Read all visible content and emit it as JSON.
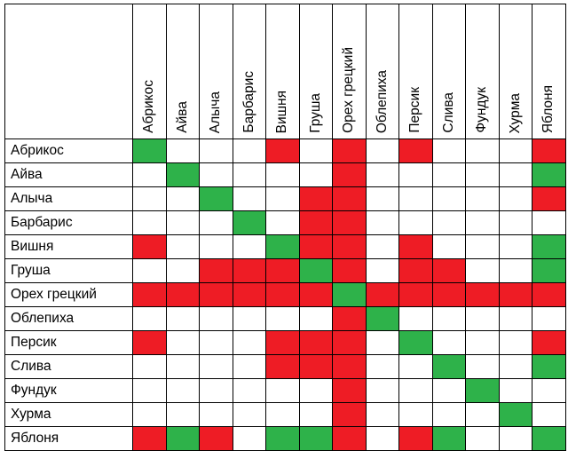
{
  "columns": [
    "Абрикос",
    "Айва",
    "Алыча",
    "Барбарис",
    "Вишня",
    "Груша",
    "Орех грецкий",
    "Облепиха",
    "Персик",
    "Слива",
    "Фундук",
    "Хурма",
    "Яблоня"
  ],
  "rows": [
    "Абрикос",
    "Айва",
    "Алыча",
    "Барбарис",
    "Вишня",
    "Груша",
    "Орех грецкий",
    "Облепиха",
    "Персик",
    "Слива",
    "Фундук",
    "Хурма",
    "Яблоня"
  ],
  "legend": {
    "G": "#2eb24a",
    "R": "#ee1c25",
    "W": "#ffffff"
  },
  "matrix": [
    [
      "G",
      "W",
      "W",
      "W",
      "R",
      "W",
      "R",
      "W",
      "R",
      "W",
      "W",
      "W",
      "R"
    ],
    [
      "W",
      "G",
      "W",
      "W",
      "W",
      "W",
      "R",
      "W",
      "W",
      "W",
      "W",
      "W",
      "G"
    ],
    [
      "W",
      "W",
      "G",
      "W",
      "W",
      "R",
      "R",
      "W",
      "W",
      "W",
      "W",
      "W",
      "R"
    ],
    [
      "W",
      "W",
      "W",
      "G",
      "W",
      "R",
      "R",
      "W",
      "W",
      "W",
      "W",
      "W",
      "W"
    ],
    [
      "R",
      "W",
      "W",
      "W",
      "G",
      "R",
      "R",
      "W",
      "R",
      "W",
      "W",
      "W",
      "G"
    ],
    [
      "W",
      "W",
      "R",
      "R",
      "R",
      "G",
      "R",
      "W",
      "R",
      "R",
      "W",
      "W",
      "G"
    ],
    [
      "R",
      "R",
      "R",
      "R",
      "R",
      "R",
      "G",
      "R",
      "R",
      "R",
      "R",
      "R",
      "R"
    ],
    [
      "W",
      "W",
      "W",
      "W",
      "W",
      "W",
      "R",
      "G",
      "W",
      "W",
      "W",
      "W",
      "W"
    ],
    [
      "R",
      "W",
      "W",
      "W",
      "R",
      "R",
      "R",
      "W",
      "G",
      "W",
      "W",
      "W",
      "R"
    ],
    [
      "W",
      "W",
      "W",
      "W",
      "R",
      "R",
      "R",
      "W",
      "W",
      "G",
      "W",
      "W",
      "G"
    ],
    [
      "W",
      "W",
      "W",
      "W",
      "W",
      "W",
      "R",
      "W",
      "W",
      "W",
      "G",
      "W",
      "W"
    ],
    [
      "W",
      "W",
      "W",
      "W",
      "W",
      "W",
      "R",
      "W",
      "W",
      "W",
      "W",
      "G",
      "W"
    ],
    [
      "R",
      "G",
      "R",
      "W",
      "G",
      "G",
      "R",
      "W",
      "R",
      "G",
      "W",
      "W",
      "G"
    ]
  ]
}
